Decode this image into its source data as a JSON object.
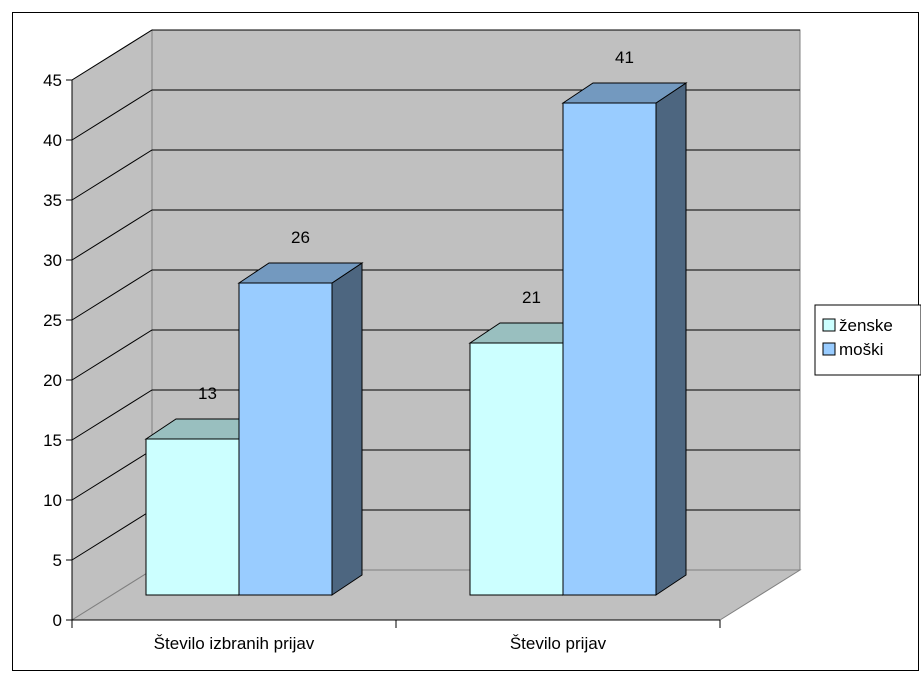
{
  "chart_data": {
    "type": "bar",
    "title": "",
    "xlabel": "",
    "ylabel": "",
    "categories": [
      "Število izbranih prijav",
      "Število prijav"
    ],
    "series": [
      {
        "name": "ženske",
        "values": [
          13,
          21
        ],
        "color": "#ccffff"
      },
      {
        "name": "moški",
        "values": [
          26,
          41
        ],
        "color": "#99ccff"
      }
    ],
    "ylim": [
      0,
      45
    ],
    "yticks": [
      0,
      5,
      10,
      15,
      20,
      25,
      30,
      35,
      40,
      45
    ],
    "grid": true,
    "legend": "right",
    "three_d": true,
    "wall_color": "#c0c0c0"
  }
}
